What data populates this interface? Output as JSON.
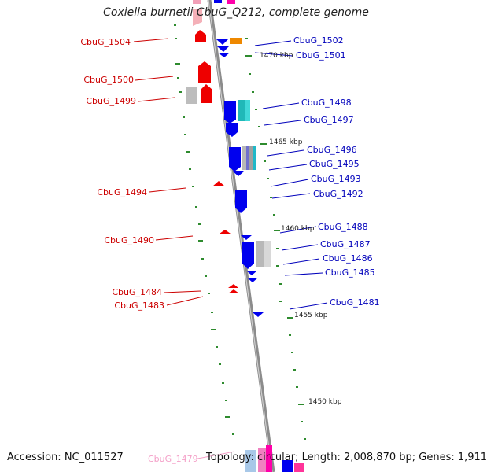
{
  "title": "Coxiella burnetii CbuG_Q212, complete genome",
  "footer": {
    "accession": "Accession: NC_011527",
    "summary": "Topology: circular; Length: 2,008,870 bp; Genes: 1,911"
  },
  "colors": {
    "backbone": "#8c8c8c",
    "left_label": "#cc0000",
    "right_label": "#0000bb",
    "faded_label": "#f4a0c8",
    "tick": "#2e8b2e"
  },
  "kbp_labels": [
    "1470 kbp",
    "1465 kbp",
    "1460 kbp",
    "1455 kbp",
    "1450 kbp"
  ],
  "left_genes": [
    "CbuG_1504",
    "CbuG_1500",
    "CbuG_1499",
    "CbuG_1494",
    "CbuG_1490",
    "CbuG_1484",
    "CbuG_1483"
  ],
  "right_genes": [
    "CbuG_1502",
    "CbuG_1501",
    "CbuG_1498",
    "CbuG_1497",
    "CbuG_1496",
    "CbuG_1495",
    "CbuG_1493",
    "CbuG_1492",
    "CbuG_1488",
    "CbuG_1487",
    "CbuG_1486",
    "CbuG_1485",
    "CbuG_1481"
  ],
  "bottom_gene": "CbuG_1479"
}
